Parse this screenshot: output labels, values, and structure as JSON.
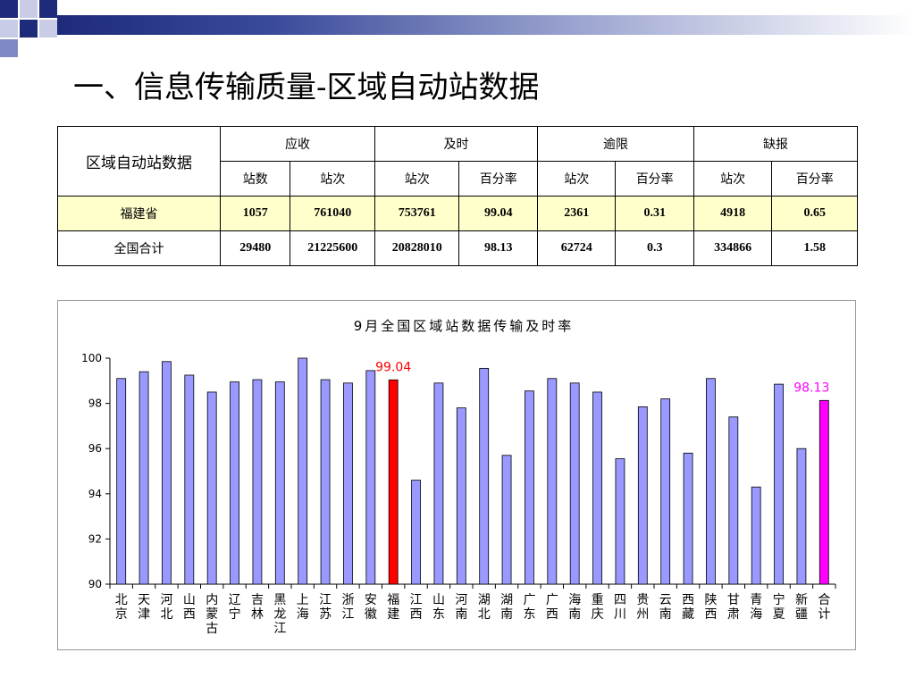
{
  "page": {
    "title": "一、信息传输质量-区域自动站数据"
  },
  "table": {
    "corner_label": "区域自动站数据",
    "groups": [
      "应收",
      "及时",
      "逾限",
      "缺报"
    ],
    "subheaders": [
      "站数",
      "站次",
      "站次",
      "百分率",
      "站次",
      "百分率",
      "站次",
      "百分率"
    ],
    "rows": [
      {
        "label": "福建省",
        "values": [
          "1057",
          "761040",
          "753761",
          "99.04",
          "2361",
          "0.31",
          "4918",
          "0.65"
        ]
      },
      {
        "label": "全国合计",
        "values": [
          "29480",
          "21225600",
          "20828010",
          "98.13",
          "62724",
          "0.3",
          "334866",
          "1.58"
        ]
      }
    ]
  },
  "colors": {
    "bar_default": "#9999ff",
    "bar_fujian": "#ff0000",
    "bar_total": "#ff00ff",
    "label_fujian": "#ff0000",
    "label_total": "#ff00ff",
    "table_highlight": "#ffffcc"
  },
  "chart_data": {
    "type": "bar",
    "title": "9月全国区域站数据传输及时率",
    "xlabel": "",
    "ylabel": "",
    "ylim": [
      90,
      100
    ],
    "yticks": [
      "90",
      "92",
      "94",
      "96",
      "98",
      "100"
    ],
    "grid": false,
    "categories": [
      "北京",
      "天津",
      "河北",
      "山西",
      "内蒙古",
      "辽宁",
      "吉林",
      "黑龙江",
      "上海",
      "江苏",
      "浙江",
      "安徽",
      "福建",
      "江西",
      "山东",
      "河南",
      "湖北",
      "湖南",
      "广东",
      "广西",
      "海南",
      "重庆",
      "四川",
      "贵州",
      "云南",
      "西藏",
      "陕西",
      "甘肃",
      "青海",
      "宁夏",
      "新疆",
      "合计"
    ],
    "values": [
      99.1,
      99.4,
      99.85,
      99.25,
      98.5,
      98.95,
      99.05,
      98.95,
      100.0,
      99.05,
      98.9,
      99.45,
      99.04,
      94.6,
      98.9,
      97.8,
      99.55,
      95.7,
      98.55,
      99.1,
      98.9,
      98.5,
      95.55,
      97.85,
      98.2,
      95.8,
      99.1,
      97.4,
      94.3,
      98.85,
      96.0,
      98.13
    ],
    "highlight": [
      {
        "category": "福建",
        "label": "99.04",
        "color_key": "fujian"
      },
      {
        "category": "合计",
        "label": "98.13",
        "color_key": "total"
      }
    ]
  }
}
